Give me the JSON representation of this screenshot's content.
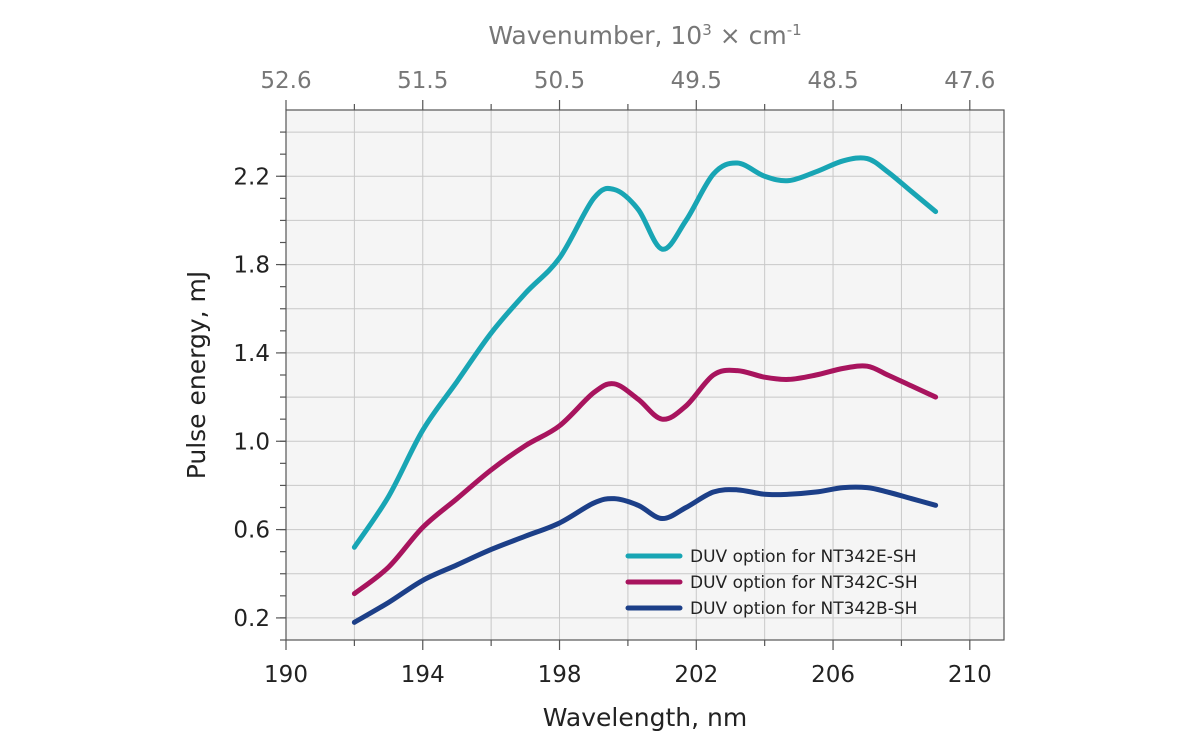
{
  "chart_data": {
    "type": "line",
    "xlabel": "Wavelength, nm",
    "ylabel": "Pulse energy, mJ",
    "top_xlabel_base": "Wavenumber, 10",
    "top_xlabel_sup1": "3",
    "top_xlabel_mid": " × cm",
    "top_xlabel_sup2": "-1",
    "xlim": [
      190,
      211
    ],
    "ylim": [
      0.1,
      2.5
    ],
    "x_ticks": [
      190,
      194,
      198,
      202,
      206,
      210
    ],
    "x_tick_labels": [
      "190",
      "194",
      "198",
      "202",
      "206",
      "210"
    ],
    "y_ticks": [
      0.2,
      0.6,
      1.0,
      1.4,
      1.8,
      2.2
    ],
    "y_tick_labels": [
      "0.2",
      "0.6",
      "1.0",
      "1.4",
      "1.8",
      "2.2"
    ],
    "top_ticks_wavelength": [
      190,
      194,
      198,
      202,
      206,
      210
    ],
    "top_tick_labels": [
      "52.6",
      "51.5",
      "50.5",
      "49.5",
      "48.5",
      "47.6"
    ],
    "grid": true,
    "legend_position": "bottom-right",
    "series": [
      {
        "name": "DUV option for NT342E-SH",
        "color": "#18a5b4",
        "x": [
          192,
          193,
          194,
          195,
          196,
          197,
          198,
          199,
          199.6,
          200.3,
          201,
          201.7,
          202.5,
          203.2,
          204,
          204.7,
          205.5,
          206.3,
          207,
          207.6,
          208.3,
          209
        ],
        "y": [
          0.52,
          0.75,
          1.05,
          1.27,
          1.49,
          1.67,
          1.83,
          2.1,
          2.14,
          2.05,
          1.87,
          2.0,
          2.21,
          2.26,
          2.2,
          2.18,
          2.22,
          2.27,
          2.28,
          2.22,
          2.13,
          2.04
        ]
      },
      {
        "name": "DUV option for NT342C-SH",
        "color": "#a8145e",
        "x": [
          192,
          193,
          194,
          195,
          196,
          197,
          198,
          199,
          199.6,
          200.3,
          201,
          201.7,
          202.5,
          203.2,
          204,
          204.7,
          205.5,
          206.3,
          207,
          207.6,
          208.3,
          209
        ],
        "y": [
          0.31,
          0.43,
          0.61,
          0.74,
          0.87,
          0.98,
          1.07,
          1.22,
          1.26,
          1.19,
          1.1,
          1.16,
          1.3,
          1.32,
          1.29,
          1.28,
          1.3,
          1.33,
          1.34,
          1.3,
          1.25,
          1.2
        ]
      },
      {
        "name": "DUV option for NT342B-SH",
        "color": "#1c3f88",
        "x": [
          192,
          193,
          194,
          195,
          196,
          197,
          198,
          199,
          199.6,
          200.3,
          201,
          201.7,
          202.5,
          203.2,
          204,
          204.7,
          205.5,
          206.3,
          207,
          207.6,
          208.3,
          209
        ],
        "y": [
          0.18,
          0.27,
          0.37,
          0.44,
          0.51,
          0.57,
          0.63,
          0.72,
          0.74,
          0.71,
          0.65,
          0.7,
          0.77,
          0.78,
          0.76,
          0.76,
          0.77,
          0.79,
          0.79,
          0.77,
          0.74,
          0.71
        ]
      }
    ]
  }
}
